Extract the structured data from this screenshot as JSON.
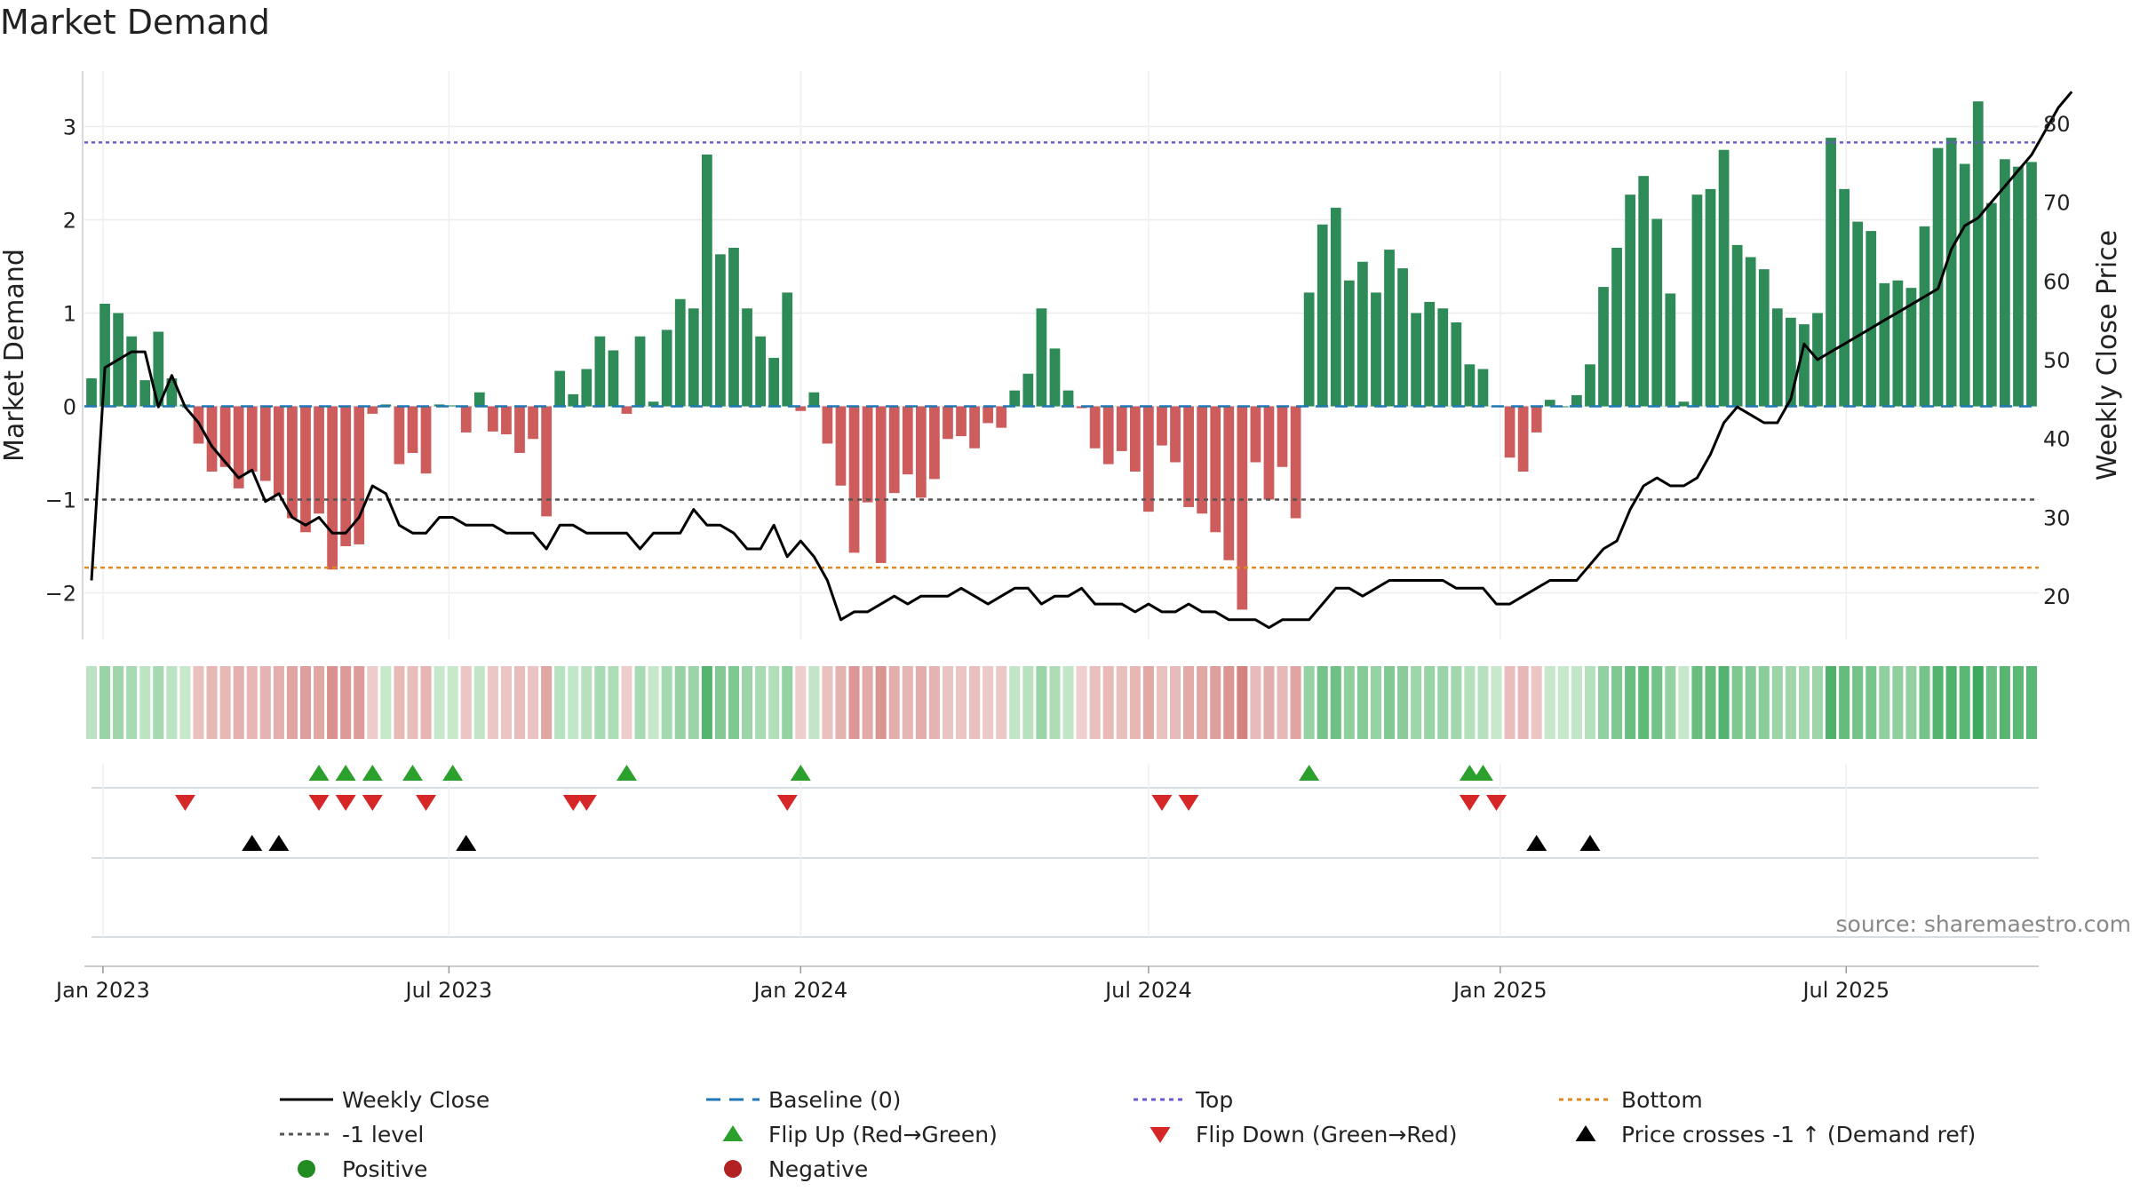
{
  "title": "Market Demand",
  "source": "source: sharemaestro.com",
  "colors": {
    "positive_bar": "#2e8b57",
    "negative_bar": "#cd5c5c",
    "price_line": "#000000",
    "baseline": "#1f77b4",
    "top_line": "#6a5acd",
    "bottom_line": "#e08a1e",
    "minus_one_line": "#555555",
    "flip_up": "#2ca02c",
    "flip_down": "#d62728",
    "cross": "#000000",
    "positive_dot": "#228b22",
    "negative_dot": "#b22222"
  },
  "chart_data": {
    "type": "bar",
    "title": "Market Demand",
    "ylabel": "Market Demand",
    "y2label": "Weekly Close Price",
    "ylim": [
      -2.5,
      3.5
    ],
    "y2lim": [
      14.5,
      85.5
    ],
    "yticks": [
      -2,
      -1,
      0,
      1,
      2,
      3
    ],
    "y2ticks": [
      20,
      30,
      40,
      50,
      60,
      70,
      80
    ],
    "levels": {
      "top": 2.83,
      "bottom": -1.73,
      "minus_one": -1,
      "baseline": 0
    },
    "start_date": "2022-12-26",
    "week_step_days": 7,
    "xticks": [
      {
        "label": "Jan 2023",
        "date": "2023-01-01"
      },
      {
        "label": "Jul 2023",
        "date": "2023-07-01"
      },
      {
        "label": "Jan 2024",
        "date": "2024-01-01"
      },
      {
        "label": "Jul 2024",
        "date": "2024-07-01"
      },
      {
        "label": "Jan 2025",
        "date": "2025-01-01"
      },
      {
        "label": "Jul 2025",
        "date": "2025-07-01"
      }
    ],
    "demand": [
      0.3,
      1.1,
      1.0,
      0.75,
      0.28,
      0.8,
      0.3,
      0.02,
      -0.4,
      -0.7,
      -0.65,
      -0.88,
      -0.7,
      -0.8,
      -0.95,
      -1.2,
      -1.35,
      -1.15,
      -1.75,
      -1.5,
      -1.48,
      -0.08,
      0.02,
      -0.62,
      -0.5,
      -0.72,
      0.02,
      0.01,
      -0.28,
      0.15,
      -0.27,
      -0.3,
      -0.5,
      -0.35,
      -1.18,
      0.38,
      0.13,
      0.4,
      0.75,
      0.6,
      -0.08,
      0.75,
      0.05,
      0.82,
      1.15,
      1.05,
      2.7,
      1.63,
      1.7,
      1.05,
      0.75,
      0.52,
      1.22,
      -0.05,
      0.15,
      -0.4,
      -0.85,
      -1.57,
      -1.03,
      -1.68,
      -0.93,
      -0.73,
      -0.98,
      -0.78,
      -0.35,
      -0.32,
      -0.45,
      -0.18,
      -0.23,
      0.17,
      0.35,
      1.05,
      0.62,
      0.17,
      -0.02,
      -0.45,
      -0.62,
      -0.48,
      -0.7,
      -1.13,
      -0.42,
      -0.6,
      -1.08,
      -1.15,
      -1.35,
      -1.65,
      -2.18,
      -0.6,
      -1.0,
      -0.65,
      -1.2,
      1.22,
      1.95,
      2.13,
      1.35,
      1.55,
      1.22,
      1.68,
      1.48,
      1.0,
      1.12,
      1.05,
      0.9,
      0.45,
      0.4,
      0.0,
      -0.55,
      -0.7,
      -0.28,
      0.07,
      0.0,
      0.12,
      0.45,
      1.28,
      1.7,
      2.27,
      2.47,
      2.01,
      1.21,
      0.05,
      2.27,
      2.33,
      2.75,
      1.73,
      1.6,
      1.47,
      1.05,
      0.95,
      0.88,
      1.0,
      2.88,
      2.33,
      1.98,
      1.88,
      1.32,
      1.35,
      1.27,
      1.93,
      2.77,
      2.88,
      2.6,
      3.27,
      2.18,
      2.65,
      2.57,
      2.62
    ],
    "price": [
      22,
      49,
      50,
      51,
      51,
      44,
      48,
      44,
      42,
      39,
      37,
      35,
      36,
      32,
      33,
      30,
      29,
      30,
      28,
      28,
      30,
      34,
      33,
      29,
      28,
      28,
      30,
      30,
      29,
      29,
      29,
      28,
      28,
      28,
      26,
      29,
      29,
      28,
      28,
      28,
      28,
      26,
      28,
      28,
      28,
      31,
      29,
      29,
      28,
      26,
      26,
      29,
      25,
      27,
      25,
      22,
      17,
      18,
      18,
      19,
      20,
      19,
      20,
      20,
      20,
      21,
      20,
      19,
      20,
      21,
      21,
      19,
      20,
      20,
      21,
      19,
      19,
      19,
      18,
      19,
      18,
      18,
      19,
      18,
      18,
      17,
      17,
      17,
      16,
      17,
      17,
      17,
      19,
      21,
      21,
      20,
      21,
      22,
      22,
      22,
      22,
      22,
      21,
      21,
      21,
      19,
      19,
      20,
      21,
      22,
      22,
      22,
      24,
      26,
      27,
      31,
      34,
      35,
      34,
      34,
      35,
      38,
      42,
      44,
      43,
      42,
      42,
      45,
      52,
      50,
      51,
      52,
      53,
      54,
      55,
      56,
      57,
      58,
      59,
      64,
      67,
      68,
      70,
      72,
      74,
      76,
      79,
      82,
      84
    ],
    "flip_up_weeks": [
      17,
      19,
      21,
      24,
      27,
      40,
      53,
      91,
      103,
      104
    ],
    "flip_down_weeks": [
      7,
      17,
      19,
      21,
      25,
      36,
      37,
      52,
      80,
      82,
      103,
      105
    ],
    "price_cross_weeks": [
      12,
      14,
      28,
      108,
      112
    ],
    "series": [
      {
        "name": "Weekly Close",
        "values_key": "price"
      },
      {
        "name": "Market Demand",
        "values_key": "demand"
      }
    ]
  },
  "legend": [
    {
      "label": "Weekly Close",
      "symbol": "solid-line",
      "color": "#000000"
    },
    {
      "label": "Baseline (0)",
      "symbol": "dash-line",
      "color": "#1f77b4"
    },
    {
      "label": "Top",
      "symbol": "dot-line",
      "color": "#6a5acd"
    },
    {
      "label": "Bottom",
      "symbol": "dot-line",
      "color": "#e08a1e"
    },
    {
      "label": "-1 level",
      "symbol": "dot-line",
      "color": "#555555"
    },
    {
      "label": "Flip Up (Red→Green)",
      "symbol": "triangle-up",
      "color": "#2ca02c"
    },
    {
      "label": "Flip Down (Green→Red)",
      "symbol": "triangle-down",
      "color": "#d62728"
    },
    {
      "label": "Price crosses -1 ↑ (Demand ref)",
      "symbol": "triangle-up",
      "color": "#000000"
    },
    {
      "label": "Positive",
      "symbol": "circle",
      "color": "#228b22"
    },
    {
      "label": "Negative",
      "symbol": "circle",
      "color": "#b22222"
    }
  ]
}
